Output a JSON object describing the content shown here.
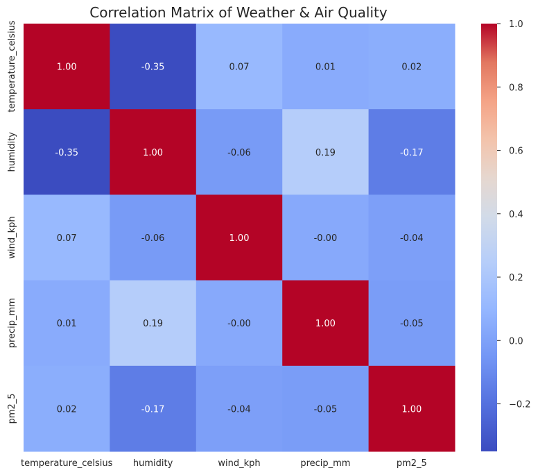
{
  "chart_data": {
    "type": "heatmap",
    "title": "Correlation Matrix of Weather & Air Quality",
    "xlabel": "",
    "ylabel": "",
    "x_categories": [
      "temperature_celsius",
      "humidity",
      "wind_kph",
      "precip_mm",
      "pm2_5"
    ],
    "y_categories": [
      "temperature_celsius",
      "humidity",
      "wind_kph",
      "precip_mm",
      "pm2_5"
    ],
    "values": [
      [
        1.0,
        -0.35,
        0.07,
        0.01,
        0.02
      ],
      [
        -0.35,
        1.0,
        -0.06,
        0.19,
        -0.17
      ],
      [
        0.07,
        -0.06,
        1.0,
        -0.0,
        -0.04
      ],
      [
        0.01,
        0.19,
        -0.0,
        1.0,
        -0.05
      ],
      [
        0.02,
        -0.17,
        -0.04,
        -0.05,
        1.0
      ]
    ],
    "cell_labels": [
      [
        "1.00",
        "-0.35",
        "0.07",
        "0.01",
        "0.02"
      ],
      [
        "-0.35",
        "1.00",
        "-0.06",
        "0.19",
        "-0.17"
      ],
      [
        "0.07",
        "-0.06",
        "1.00",
        "-0.00",
        "-0.04"
      ],
      [
        "0.01",
        "0.19",
        "-0.00",
        "1.00",
        "-0.05"
      ],
      [
        "0.02",
        "-0.17",
        "-0.04",
        "-0.05",
        "1.00"
      ]
    ],
    "colormap": "coolwarm",
    "color_range": [
      -0.35,
      1.0
    ],
    "colorbar": {
      "ticks": [
        1.0,
        0.8,
        0.6,
        0.4,
        0.2,
        0.0,
        -0.2
      ],
      "tick_labels": [
        "1.0",
        "0.8",
        "0.6",
        "0.4",
        "0.2",
        "0.0",
        "−0.2"
      ]
    },
    "grid": false
  }
}
